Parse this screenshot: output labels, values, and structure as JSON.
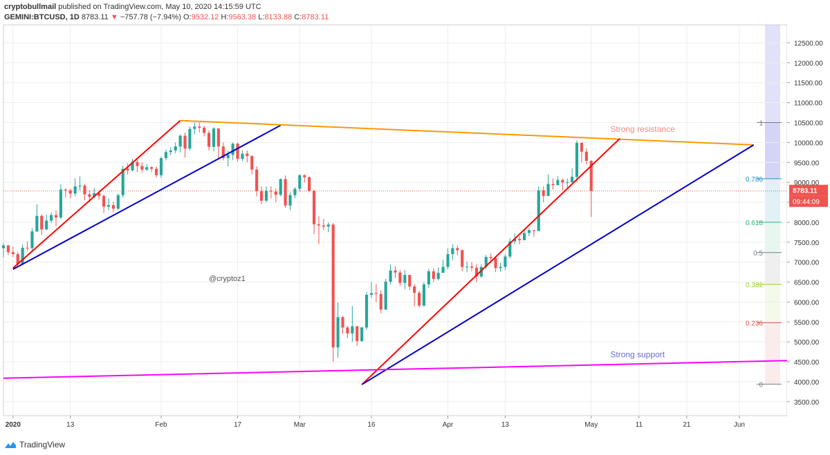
{
  "header": {
    "author": "cryptobullmail",
    "published_text": "published on TradingView.com, May 10, 2020 14:15:59 UTC",
    "symbol": "GEMINI:BTCUSD, 1D",
    "last": "8783.11",
    "change": "−757.78 (−7.94%)",
    "o_label": "O:",
    "o_value": "9532.12",
    "h_label": "H:",
    "h_value": "9563.38",
    "l_label": "L:",
    "l_value": "8133.88",
    "c_label": "C:",
    "c_value": "8783.11"
  },
  "brand": {
    "name": "TradingView",
    "logo_icon": "tradingview-logo-icon"
  },
  "chart_data": {
    "type": "candlestick",
    "y_ticks": [
      3500,
      4000,
      4500,
      5000,
      5500,
      6000,
      6500,
      7000,
      7500,
      8000,
      8500,
      9000,
      9500,
      10000,
      10500,
      11000,
      11500,
      12000,
      12500
    ],
    "y_tick_labels": [
      "3500.00",
      "4000.00",
      "4500.00",
      "5000.00",
      "5500.00",
      "6000.00",
      "6500.00",
      "7000.00",
      "7500.00",
      "8000.00",
      "8500.00",
      "9000.00",
      "9500.00",
      "10000.00",
      "10500.00",
      "11000.00",
      "11500.00",
      "12000.00",
      "12500.00"
    ],
    "ylim": [
      3150,
      12950
    ],
    "x_start": "2019-12-30",
    "x_end": "2020-06-11",
    "x_ticks": [
      {
        "date": "2020-01-01",
        "label": "2020"
      },
      {
        "date": "2020-01-13",
        "label": "13"
      },
      {
        "date": "2020-02-01",
        "label": "Feb"
      },
      {
        "date": "2020-02-17",
        "label": "17"
      },
      {
        "date": "2020-03-01",
        "label": "Mar"
      },
      {
        "date": "2020-03-16",
        "label": "16"
      },
      {
        "date": "2020-04-01",
        "label": "Apr"
      },
      {
        "date": "2020-04-13",
        "label": "13"
      },
      {
        "date": "2020-05-01",
        "label": "May"
      },
      {
        "date": "2020-05-11",
        "label": "11"
      },
      {
        "date": "2020-05-21",
        "label": "21"
      },
      {
        "date": "2020-06-01",
        "label": "Jun"
      }
    ],
    "first_date": "2019-12-30",
    "closes": [
      7420,
      7250,
      7200,
      6950,
      7360,
      7350,
      7770,
      8160,
      7820,
      8040,
      8180,
      8120,
      8820,
      8800,
      8720,
      8900,
      8920,
      8700,
      8640,
      8730,
      8660,
      8390,
      8430,
      8340,
      8680,
      9340,
      9300,
      9510,
      9410,
      9320,
      9380,
      9340,
      9180,
      9610,
      9760,
      9800,
      9900,
      10170,
      9850,
      10340,
      10400,
      10370,
      10240,
      9890,
      10350,
      9900,
      9610,
      9690,
      9970,
      9590,
      9720,
      9660,
      9320,
      8780,
      8540,
      8790,
      8770,
      8690,
      9080,
      8420,
      8680,
      8840,
      9180,
      9130,
      8790,
      7950,
      7920,
      7890,
      7940,
      4860,
      5620,
      5360,
      5210,
      5390,
      5020,
      5360,
      6180,
      6220,
      6200,
      5810,
      6510,
      6790,
      6740,
      6480,
      6680,
      6390,
      6230,
      5910,
      6440,
      6770,
      6580,
      6730,
      6880,
      7200,
      7350,
      7300,
      6880,
      6890,
      6860,
      6640,
      6880,
      7130,
      7100,
      6850,
      6880,
      7140,
      7520,
      7580,
      7550,
      7730,
      7800,
      7780,
      8800,
      8660,
      8960,
      8930,
      9060,
      9000,
      9000,
      9140,
      9990,
      9770,
      9540,
      8783
    ],
    "candle_ranges": [
      [
        7480,
        7120
      ],
      [
        7430,
        7180
      ],
      [
        7390,
        7130
      ],
      [
        7260,
        6880
      ],
      [
        7440,
        6930
      ],
      [
        7520,
        7280
      ],
      [
        7850,
        7300
      ],
      [
        8450,
        7750
      ],
      [
        8200,
        7680
      ],
      [
        8190,
        7800
      ],
      [
        8250,
        7980
      ],
      [
        8300,
        7900
      ],
      [
        8950,
        8080
      ],
      [
        8850,
        8620
      ],
      [
        8840,
        8600
      ],
      [
        9100,
        8650
      ],
      [
        9150,
        8800
      ],
      [
        8960,
        8550
      ],
      [
        8800,
        8500
      ],
      [
        8860,
        8600
      ],
      [
        8800,
        8570
      ],
      [
        8690,
        8230
      ],
      [
        8600,
        8300
      ],
      [
        8520,
        8250
      ],
      [
        8720,
        8300
      ],
      [
        9420,
        8620
      ],
      [
        9480,
        9200
      ],
      [
        9590,
        9270
      ],
      [
        9580,
        9260
      ],
      [
        9500,
        9240
      ],
      [
        9460,
        9280
      ],
      [
        9400,
        9260
      ],
      [
        9400,
        9120
      ],
      [
        9640,
        9110
      ],
      [
        9820,
        9550
      ],
      [
        9880,
        9680
      ],
      [
        10000,
        9730
      ],
      [
        10200,
        9750
      ],
      [
        10250,
        9620
      ],
      [
        10400,
        9800
      ],
      [
        10500,
        10200
      ],
      [
        10500,
        10250
      ],
      [
        10420,
        10150
      ],
      [
        10300,
        9800
      ],
      [
        10380,
        9780
      ],
      [
        10360,
        9600
      ],
      [
        10000,
        9550
      ],
      [
        9800,
        9400
      ],
      [
        10000,
        9560
      ],
      [
        10000,
        9520
      ],
      [
        9800,
        9530
      ],
      [
        9800,
        9500
      ],
      [
        9680,
        9200
      ],
      [
        9400,
        8650
      ],
      [
        8900,
        8450
      ],
      [
        8900,
        8500
      ],
      [
        8900,
        8600
      ],
      [
        8850,
        8500
      ],
      [
        9100,
        8650
      ],
      [
        9170,
        8360
      ],
      [
        8750,
        8300
      ],
      [
        8880,
        8600
      ],
      [
        9200,
        8770
      ],
      [
        9200,
        9000
      ],
      [
        9150,
        8750
      ],
      [
        8810,
        7700
      ],
      [
        8150,
        7450
      ],
      [
        8090,
        7800
      ],
      [
        8000,
        7750
      ],
      [
        7980,
        4500
      ],
      [
        5990,
        4600
      ],
      [
        5650,
        5200
      ],
      [
        5400,
        5100
      ],
      [
        5900,
        5000
      ],
      [
        5400,
        4900
      ],
      [
        5380,
        5000
      ],
      [
        6250,
        5300
      ],
      [
        6500,
        6100
      ],
      [
        6450,
        6000
      ],
      [
        6300,
        5720
      ],
      [
        6580,
        5800
      ],
      [
        6940,
        6440
      ],
      [
        6900,
        6600
      ],
      [
        6800,
        6400
      ],
      [
        6800,
        6320
      ],
      [
        6650,
        6300
      ],
      [
        6450,
        5890
      ],
      [
        6280,
        5860
      ],
      [
        6500,
        5880
      ],
      [
        6830,
        6350
      ],
      [
        6850,
        6500
      ],
      [
        6870,
        6540
      ],
      [
        7060,
        6780
      ],
      [
        7350,
        6820
      ],
      [
        7450,
        7050
      ],
      [
        7420,
        7170
      ],
      [
        7320,
        6770
      ],
      [
        7020,
        6750
      ],
      [
        7000,
        6770
      ],
      [
        6950,
        6500
      ],
      [
        6950,
        6600
      ],
      [
        7180,
        6830
      ],
      [
        7220,
        6980
      ],
      [
        7150,
        6750
      ],
      [
        6980,
        6760
      ],
      [
        7200,
        6800
      ],
      [
        7600,
        7100
      ],
      [
        7720,
        7450
      ],
      [
        7650,
        7450
      ],
      [
        7800,
        7650
      ],
      [
        7850,
        7650
      ],
      [
        7810,
        7630
      ],
      [
        8900,
        7800
      ],
      [
        8900,
        8500
      ],
      [
        9200,
        8650
      ],
      [
        9100,
        8820
      ],
      [
        9150,
        8950
      ],
      [
        9100,
        8800
      ],
      [
        9100,
        8850
      ],
      [
        9350,
        9000
      ],
      [
        10050,
        9000
      ],
      [
        10000,
        9500
      ],
      [
        9850,
        9450
      ],
      [
        9563,
        8134
      ]
    ],
    "current_price": 8783.11,
    "price_label": "8783.11",
    "countdown_label": "09:44:09",
    "watermark": "@cryptoz1",
    "trendlines": [
      {
        "name": "red",
        "color": "#ff0000",
        "points": [
          [
            "2020-01-01",
            6850
          ],
          [
            "2020-02-05",
            10550
          ]
        ]
      },
      {
        "name": "blue",
        "color": "#0000cc",
        "points": [
          [
            "2020-01-01",
            6820
          ],
          [
            "2020-02-26",
            10430
          ]
        ]
      },
      {
        "name": "orange",
        "color": "#ff9800",
        "points": [
          [
            "2020-02-05",
            10550
          ],
          [
            "2020-06-04",
            9940
          ]
        ]
      },
      {
        "name": "red",
        "color": "#ff0000",
        "points": [
          [
            "2020-03-14",
            3930
          ],
          [
            "2020-05-07",
            10100
          ]
        ]
      },
      {
        "name": "blue",
        "color": "#0000cc",
        "points": [
          [
            "2020-03-14",
            3930
          ],
          [
            "2020-06-04",
            9940
          ]
        ]
      },
      {
        "name": "magenta",
        "color": "#ff00ff",
        "points": [
          [
            "2019-12-30",
            4090
          ],
          [
            "2020-06-11",
            4530
          ]
        ]
      }
    ],
    "annotations": [
      {
        "text": "Strong resistance",
        "date": "2020-05-05",
        "price": 10270,
        "color": "#f28b82"
      },
      {
        "text": "Strong support",
        "date": "2020-05-05",
        "price": 4610,
        "color": "#6b6bd6"
      }
    ],
    "fib_levels": [
      {
        "label": "1",
        "price": 10500,
        "color": "#787b86",
        "band": "#b0b0f0"
      },
      {
        "label": "0.786",
        "price": 9090,
        "color": "#1e90c8",
        "band": "#c8e6ef"
      },
      {
        "label": "0.618",
        "price": 8000,
        "color": "#2fb37e",
        "band": "#d4f1e4"
      },
      {
        "label": "0.5",
        "price": 7240,
        "color": "#787b86",
        "band": "#e2e2e2"
      },
      {
        "label": "0.382",
        "price": 6440,
        "color": "#9acd32",
        "band": "#ebf6d8"
      },
      {
        "label": "0.236",
        "price": 5480,
        "color": "#e05050",
        "band": "#f8dada"
      },
      {
        "label": "0",
        "price": 3940,
        "color": "#787b86",
        "band": "#fbe4e6"
      }
    ],
    "colors": {
      "up": "#26a69a",
      "down": "#ef5350",
      "grid": "#ededed"
    }
  }
}
